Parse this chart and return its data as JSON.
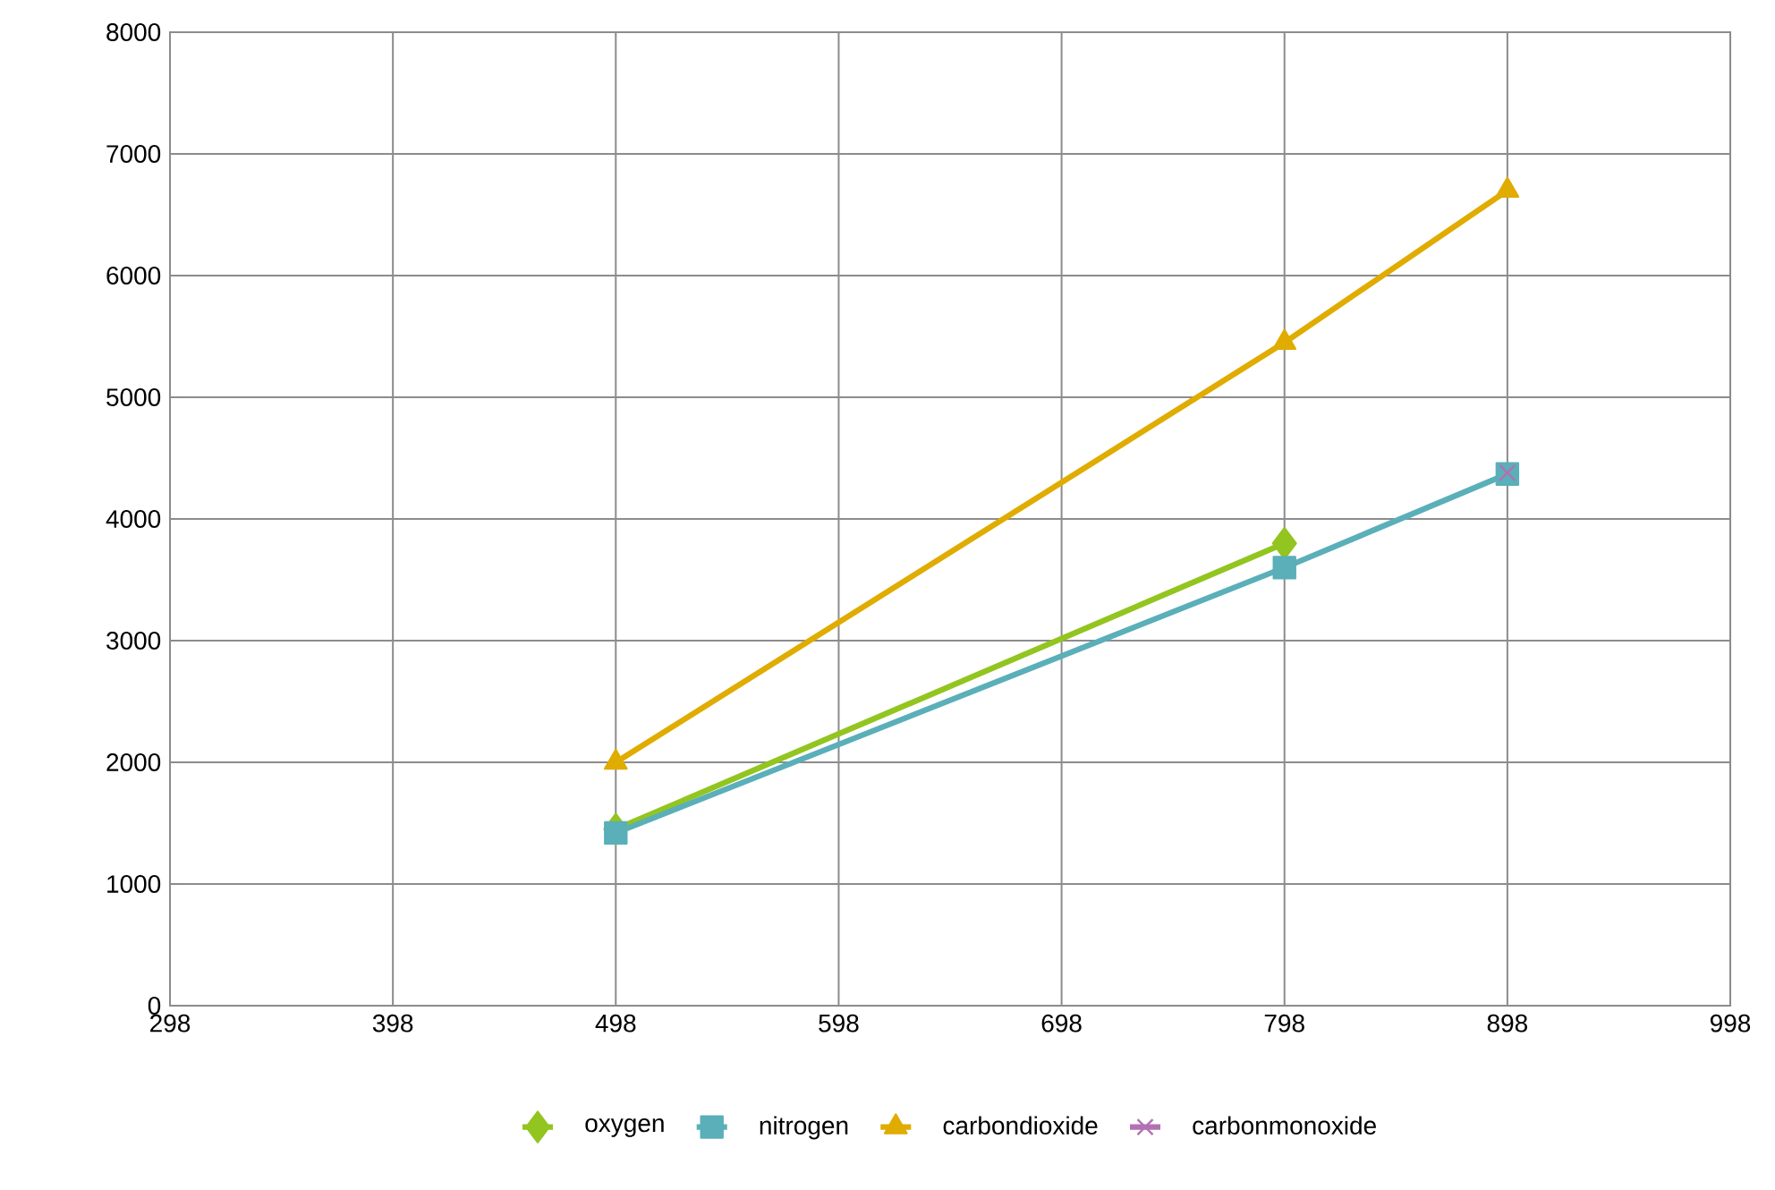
{
  "chart_data": {
    "type": "line",
    "x": [
      498,
      798,
      898
    ],
    "series": [
      {
        "name": "oxygen",
        "color": "#92c51f",
        "marker": "diamond",
        "values": [
          1450,
          3800,
          null
        ]
      },
      {
        "name": "nitrogen",
        "color": "#5aafb9",
        "marker": "square",
        "values": [
          1420,
          3600,
          4370
        ]
      },
      {
        "name": "carbondioxide",
        "color": "#e0ac00",
        "marker": "triangle",
        "values": [
          2000,
          5450,
          6700
        ]
      },
      {
        "name": "carbonmonoxide",
        "color": "#b271b2",
        "marker": "cross",
        "values": [
          null,
          null,
          4380
        ]
      }
    ],
    "xlim": [
      298,
      998
    ],
    "xticks": [
      298,
      398,
      498,
      598,
      698,
      798,
      898,
      998
    ],
    "ylim": [
      0,
      8000
    ],
    "yticks": [
      0,
      1000,
      2000,
      3000,
      4000,
      5000,
      6000,
      7000,
      8000
    ],
    "grid": true,
    "legend": "bottom",
    "line_style": "solid"
  }
}
